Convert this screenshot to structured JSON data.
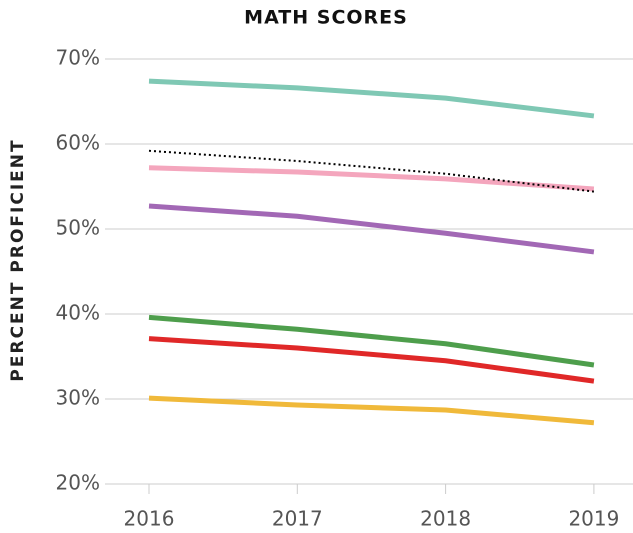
{
  "chart_data": {
    "type": "line",
    "title": "MATH SCORES",
    "y_label": "PERCENT PROFICIENT",
    "categories": [
      "2016",
      "2017",
      "2018",
      "2019"
    ],
    "ylim": [
      20,
      70
    ],
    "yticks": [
      {
        "value": 20,
        "label": "20%"
      },
      {
        "value": 30,
        "label": "30%"
      },
      {
        "value": 40,
        "label": "40%"
      },
      {
        "value": 50,
        "label": "50%"
      },
      {
        "value": 60,
        "label": "60%"
      },
      {
        "value": 70,
        "label": "70%"
      }
    ],
    "grid": true,
    "series": [
      {
        "color": "#7fc8b4",
        "values": [
          67.4,
          66.6,
          65.4,
          63.3
        ]
      },
      {
        "color": "#f4a6bd",
        "values": [
          57.2,
          56.7,
          55.9,
          54.7
        ]
      },
      {
        "color": "#000000",
        "dash": "dotted",
        "values": [
          59.2,
          58.0,
          56.5,
          54.4
        ]
      },
      {
        "color": "#a268b5",
        "values": [
          52.7,
          51.5,
          49.5,
          47.3
        ]
      },
      {
        "color": "#4e9e4c",
        "values": [
          39.6,
          38.2,
          36.5,
          34.0
        ]
      },
      {
        "color": "#e02828",
        "values": [
          37.1,
          36.0,
          34.5,
          32.1
        ]
      },
      {
        "color": "#f0b93a",
        "values": [
          30.1,
          29.3,
          28.7,
          27.2
        ]
      }
    ]
  }
}
